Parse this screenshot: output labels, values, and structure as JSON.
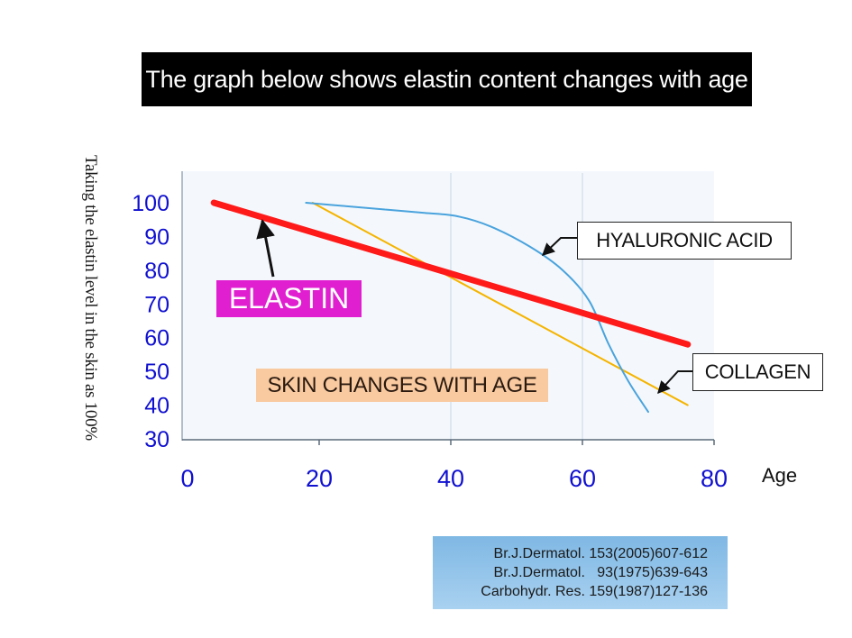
{
  "banner": {
    "text": "The graph below shows elastin content changes with age"
  },
  "colors": {
    "elastin": "#ff1a1a",
    "collagen": "#f5b400",
    "hyaluronic": "#4aa3dd",
    "tick_text": "#1010d0",
    "elastin_tag_bg": "#e01fd0",
    "skin_tag_bg": "#f9caa0"
  },
  "chart_data": {
    "type": "line",
    "title": "",
    "xlabel": "Age",
    "ylabel": "Taking the elastin level in the skin as 100%",
    "xlim": [
      0,
      80
    ],
    "ylim": [
      30,
      100
    ],
    "x_ticks": [
      "0",
      "20",
      "40",
      "60",
      "80"
    ],
    "y_ticks": [
      "30",
      "40",
      "50",
      "60",
      "70",
      "80",
      "90",
      "100"
    ],
    "grid": "vertical lines at x=40 and x=60",
    "legend": "none (callout boxes)",
    "series": [
      {
        "name": "ELASTIN",
        "x": [
          4,
          76
        ],
        "y": [
          100,
          58
        ]
      },
      {
        "name": "COLLAGEN",
        "x": [
          19,
          76
        ],
        "y": [
          100,
          40
        ]
      },
      {
        "name": "HYALURONIC ACID",
        "x": [
          18,
          24,
          30,
          36,
          41,
          46,
          52,
          57,
          61,
          64,
          67,
          70
        ],
        "y": [
          100,
          99,
          98,
          97,
          96,
          93,
          87,
          80,
          71,
          58,
          47,
          38
        ]
      }
    ],
    "annotations": {
      "elastin_label": "ELASTIN",
      "hyaluronic_label": "HYALURONIC ACID",
      "collagen_label": "COLLAGEN",
      "skin_label": "SKIN CHANGES WITH AGE"
    }
  },
  "references": [
    "Br.J.Dermatol. 153(2005)607-612",
    "Br.J.Dermatol.   93(1975)639-643",
    "Carbohydr. Res. 159(1987)127-136"
  ]
}
